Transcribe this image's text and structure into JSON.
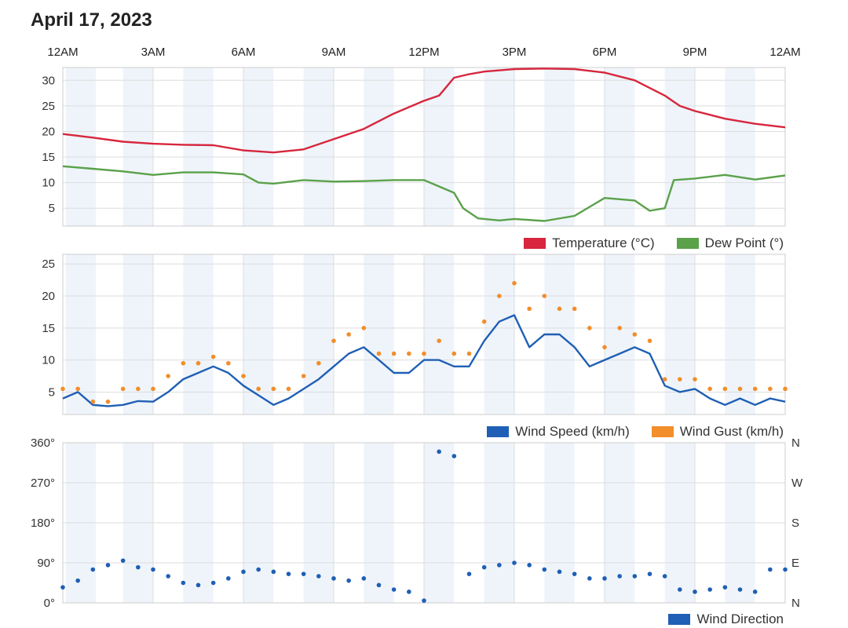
{
  "header": {
    "date": "April 17, 2023",
    "hour_labels": [
      "12AM",
      "3AM",
      "6AM",
      "9AM",
      "12PM",
      "3PM",
      "6PM",
      "9PM",
      "12AM"
    ]
  },
  "colors": {
    "temperature": "#d7263d",
    "dew_point": "#5aa14a",
    "wind_speed": "#1f5fb5",
    "wind_gust": "#f28e2b",
    "wind_direction": "#1f5fb5",
    "band": "#eef4fa",
    "grid": "#dddddd"
  },
  "legends": {
    "temperature": "Temperature (°C)",
    "dew_point": "Dew Point (°)",
    "wind_speed": "Wind Speed (km/h)",
    "wind_gust": "Wind Gust (km/h)",
    "wind_direction": "Wind Direction"
  },
  "chart_data": [
    {
      "type": "line",
      "x_unit": "hour",
      "xlim": [
        0,
        24
      ],
      "ylim": [
        1.5,
        32.5
      ],
      "yticks": [
        5,
        10,
        15,
        20,
        25,
        30
      ],
      "grid": true,
      "legend_position": "bottom-right",
      "series": [
        {
          "name": "Temperature (°C)",
          "x": [
            0,
            1,
            2,
            3,
            4,
            5,
            6,
            7,
            8,
            9,
            10,
            11,
            12,
            12.5,
            13,
            13.5,
            14,
            15,
            16,
            17,
            18,
            19,
            20,
            20.5,
            21,
            22,
            23,
            24
          ],
          "values": [
            19.5,
            18.8,
            18,
            17.6,
            17.4,
            17.3,
            16.3,
            15.9,
            16.5,
            18.5,
            20.5,
            23.5,
            26,
            27,
            30.5,
            31.2,
            31.7,
            32.2,
            32.3,
            32.2,
            31.5,
            30,
            27,
            25,
            24,
            22.5,
            21.5,
            20.8
          ]
        },
        {
          "name": "Dew Point (°)",
          "x": [
            0,
            1,
            2,
            3,
            4,
            5,
            6,
            6.5,
            7,
            8,
            9,
            10,
            11,
            12,
            13,
            13.3,
            13.8,
            14.5,
            15,
            16,
            17,
            18,
            19,
            19.5,
            20,
            20.3,
            21,
            22,
            23,
            24
          ],
          "values": [
            13.2,
            12.7,
            12.2,
            11.5,
            12,
            12,
            11.6,
            10,
            9.8,
            10.5,
            10.2,
            10.3,
            10.5,
            10.5,
            8,
            5,
            3,
            2.6,
            2.9,
            2.5,
            3.5,
            7,
            6.5,
            4.5,
            5,
            10.5,
            10.8,
            11.5,
            10.6,
            11.4
          ]
        }
      ]
    },
    {
      "type": "line",
      "x_unit": "hour",
      "xlim": [
        0,
        24
      ],
      "ylim": [
        1.5,
        26.5
      ],
      "yticks": [
        5,
        10,
        15,
        20,
        25
      ],
      "grid": true,
      "legend_position": "bottom-right",
      "series": [
        {
          "name": "Wind Speed (km/h)",
          "x": [
            0,
            0.5,
            1,
            1.5,
            2,
            2.5,
            3,
            3.5,
            4,
            4.5,
            5,
            5.5,
            6,
            6.5,
            7,
            7.5,
            8,
            8.5,
            9,
            9.5,
            10,
            10.5,
            11,
            11.5,
            12,
            12.5,
            13,
            13.5,
            14,
            14.5,
            15,
            15.5,
            16,
            16.5,
            17,
            17.5,
            18,
            18.5,
            19,
            19.5,
            20,
            20.5,
            21,
            21.5,
            22,
            22.5,
            23,
            23.5,
            24
          ],
          "values": [
            4,
            5,
            3,
            2.8,
            3,
            3.6,
            3.5,
            5,
            7,
            8,
            9,
            8,
            6,
            4.5,
            3,
            4,
            5.5,
            7,
            9,
            11,
            12,
            10,
            8,
            8,
            10,
            10,
            9,
            9,
            13,
            16,
            17,
            12,
            14,
            14,
            12,
            9,
            10,
            11,
            12,
            11,
            6,
            5,
            5.5,
            4,
            3,
            4,
            3,
            4,
            3.5
          ]
        },
        {
          "name": "Wind Gust (km/h)",
          "style": "dots",
          "x": [
            0,
            0.5,
            1,
            1.5,
            2,
            2.5,
            3,
            3.5,
            4,
            4.5,
            5,
            5.5,
            6,
            6.5,
            7,
            7.5,
            8,
            8.5,
            9,
            9.5,
            10,
            10.5,
            11,
            11.5,
            12,
            12.5,
            13,
            13.5,
            14,
            14.5,
            15,
            15.5,
            16,
            16.5,
            17,
            17.5,
            18,
            18.5,
            19,
            19.5,
            20,
            20.5,
            21,
            21.5,
            22,
            22.5,
            23,
            23.5,
            24
          ],
          "values": [
            5.5,
            5.5,
            3.5,
            3.5,
            5.5,
            5.5,
            5.5,
            7.5,
            9.5,
            9.5,
            10.5,
            9.5,
            7.5,
            5.5,
            5.5,
            5.5,
            7.5,
            9.5,
            13,
            14,
            15,
            11,
            11,
            11,
            11,
            13,
            11,
            11,
            16,
            20,
            22,
            18,
            20,
            18,
            18,
            15,
            12,
            15,
            14,
            13,
            7,
            7,
            7,
            5.5,
            5.5,
            5.5,
            5.5,
            5.5,
            5.5
          ]
        }
      ]
    },
    {
      "type": "scatter",
      "x_unit": "hour",
      "xlim": [
        0,
        24
      ],
      "ylim": [
        0,
        360
      ],
      "yticks": [
        0,
        90,
        180,
        270,
        360
      ],
      "ytick_labels": [
        "0°",
        "90°",
        "180°",
        "270°",
        "360°"
      ],
      "right_tick_labels": [
        "N",
        "E",
        "S",
        "W",
        "N"
      ],
      "grid": true,
      "legend_position": "bottom-right",
      "series": [
        {
          "name": "Wind Direction",
          "x": [
            0,
            0.5,
            1,
            1.5,
            2,
            2.5,
            3,
            3.5,
            4,
            4.5,
            5,
            5.5,
            6,
            6.5,
            7,
            7.5,
            8,
            8.5,
            9,
            9.5,
            10,
            10.5,
            11,
            11.5,
            12,
            12.5,
            13,
            13.5,
            14,
            14.5,
            15,
            15.5,
            16,
            16.5,
            17,
            17.5,
            18,
            18.5,
            19,
            19.5,
            20,
            20.5,
            21,
            21.5,
            22,
            22.5,
            23,
            23.5,
            24
          ],
          "values": [
            35,
            50,
            75,
            85,
            95,
            80,
            75,
            60,
            45,
            40,
            45,
            55,
            70,
            75,
            70,
            65,
            65,
            60,
            55,
            50,
            55,
            40,
            30,
            25,
            5,
            340,
            330,
            65,
            80,
            85,
            90,
            85,
            75,
            70,
            65,
            55,
            55,
            60,
            60,
            65,
            60,
            30,
            25,
            30,
            35,
            30,
            25,
            75,
            75
          ]
        }
      ]
    }
  ]
}
